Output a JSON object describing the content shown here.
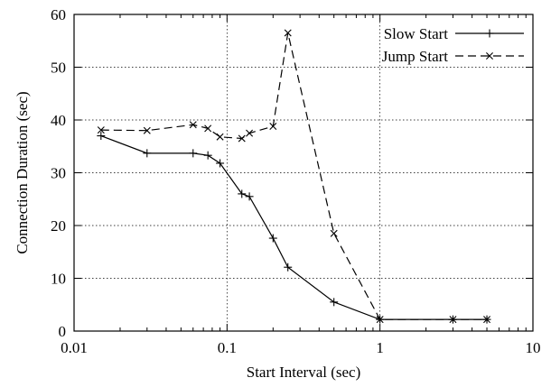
{
  "chart_data": {
    "type": "line",
    "xscale": "log",
    "xlabel": "Start Interval (sec)",
    "ylabel": "Connection Duration (sec)",
    "xlim": [
      0.01,
      10
    ],
    "ylim": [
      0,
      60
    ],
    "xticks": [
      0.01,
      0.1,
      1,
      10
    ],
    "xtick_labels": [
      "0.01",
      "0.1",
      "1",
      "10"
    ],
    "yticks": [
      0,
      10,
      20,
      30,
      40,
      50,
      60
    ],
    "ytick_labels": [
      "0",
      "10",
      "20",
      "30",
      "40",
      "50",
      "60"
    ],
    "grid": true,
    "legend_position": "top-right",
    "series": [
      {
        "name": "Slow Start",
        "line_style": "solid",
        "marker": "plus",
        "color": "#000000",
        "x": [
          0.015,
          0.03,
          0.06,
          0.075,
          0.09,
          0.125,
          0.14,
          0.2,
          0.25,
          0.5,
          1,
          3,
          5
        ],
        "y": [
          37.0,
          33.7,
          33.7,
          33.3,
          31.8,
          26.0,
          25.5,
          17.6,
          12.1,
          5.5,
          2.2,
          2.2,
          2.2
        ]
      },
      {
        "name": "Jump Start",
        "line_style": "dashed",
        "marker": "x",
        "color": "#000000",
        "x": [
          0.015,
          0.03,
          0.06,
          0.075,
          0.09,
          0.125,
          0.14,
          0.2,
          0.25,
          0.5,
          1,
          3,
          5
        ],
        "y": [
          38.1,
          38.0,
          39.1,
          38.4,
          36.8,
          36.5,
          37.5,
          38.8,
          56.5,
          18.5,
          2.2,
          2.2,
          2.2
        ]
      }
    ]
  }
}
